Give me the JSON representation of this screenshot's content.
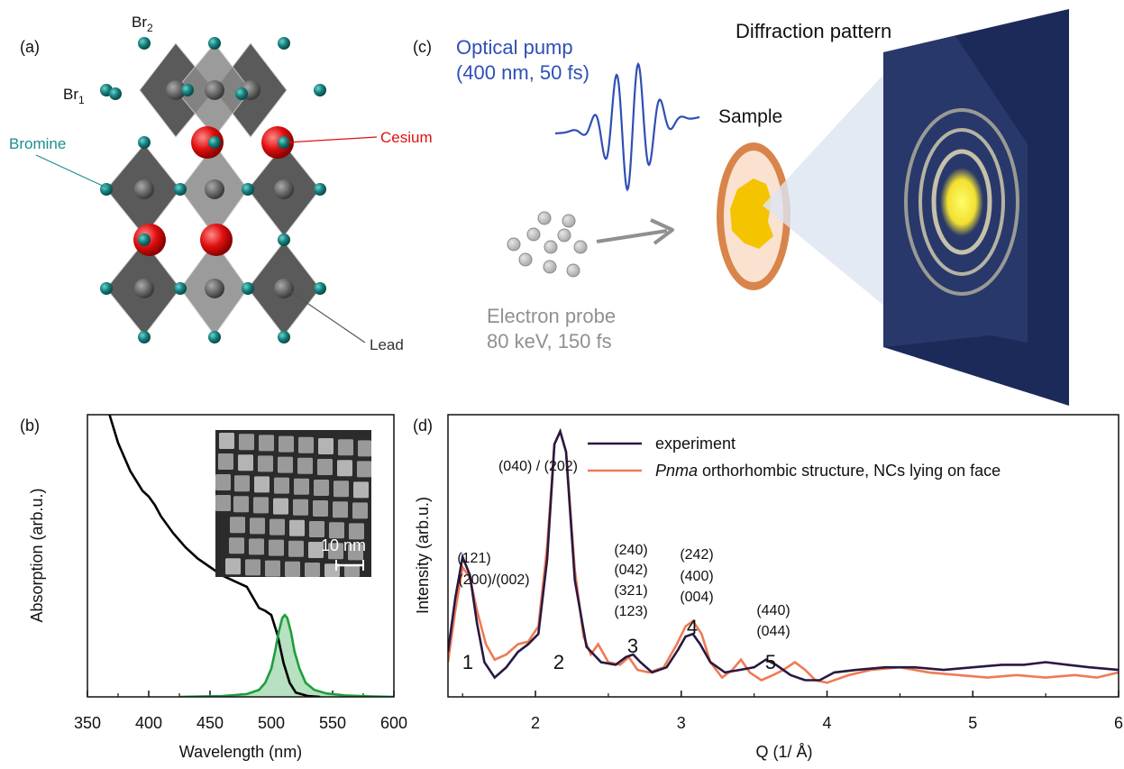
{
  "panels": {
    "a": {
      "label": "(a)",
      "br2": "Br",
      "br2_sub": "2",
      "br1": "Br",
      "br1_sub": "1",
      "bromine": "Bromine",
      "cesium": "Cesium",
      "lead": "Lead"
    },
    "b": {
      "label": "(b)",
      "scale_bar": "10 nm",
      "colors": {
        "absorption": "#000000",
        "pl": "#1e9e3e",
        "pl_fill": "#b7e1c1"
      }
    },
    "c": {
      "label": "(c)",
      "pump_line1": "Optical pump",
      "pump_line2": "(400 nm, 50 fs)",
      "sample": "Sample",
      "probe_line1": "Electron probe",
      "probe_line2": "80 keV, 150 fs",
      "diffraction_title": "Diffraction pattern",
      "colors": {
        "pump": "#2f4fb5",
        "probe": "#909090",
        "screen": "#1c2a5a",
        "sample_ring": "#d9844a",
        "spot": "#f2e030"
      }
    },
    "d": {
      "label": "(d)",
      "legend_experiment": "experiment",
      "legend_sim_italic": "Pnma",
      "legend_sim_rest": " orthorhombic structure, NCs lying on face",
      "peaks": [
        {
          "number": "1",
          "lines": [
            "(121)",
            "(200)/(002)"
          ]
        },
        {
          "number": "2",
          "lines": [
            "(040) / (202)"
          ]
        },
        {
          "number": "3",
          "lines": [
            "(240)",
            "(042)",
            "(321)",
            "(123)"
          ]
        },
        {
          "number": "4",
          "lines": [
            "(242)",
            "(400)",
            "(004)"
          ]
        },
        {
          "number": "5",
          "lines": [
            "(440)",
            "(044)"
          ]
        }
      ],
      "colors": {
        "experiment": "#2a1840",
        "simulation": "#ef7a55"
      }
    }
  },
  "chart_data": [
    {
      "type": "line",
      "panel": "b",
      "xlabel": "Wavelength (nm)",
      "ylabel": "Absorption (arb.u.)",
      "xlim": [
        350,
        600
      ],
      "ylim": [
        0,
        1
      ],
      "xticks": [
        "350",
        "400",
        "450",
        "500",
        "550",
        "600"
      ],
      "series": [
        {
          "x": [
            368,
            375,
            385,
            395,
            400,
            405,
            410,
            420,
            430,
            440,
            450,
            460,
            470,
            480,
            490,
            495,
            500,
            505,
            510,
            515,
            520,
            530,
            540
          ],
          "y": [
            1.0,
            0.9,
            0.8,
            0.73,
            0.71,
            0.68,
            0.64,
            0.58,
            0.53,
            0.49,
            0.46,
            0.43,
            0.41,
            0.39,
            0.315,
            0.305,
            0.29,
            0.22,
            0.12,
            0.05,
            0.015,
            0.003,
            0.0
          ]
        },
        {
          "x": [
            425,
            460,
            480,
            490,
            495,
            500,
            503,
            506,
            509,
            511,
            513,
            516,
            519,
            523,
            528,
            535,
            545,
            560,
            580,
            600
          ],
          "y": [
            0.0,
            0.003,
            0.01,
            0.025,
            0.05,
            0.1,
            0.16,
            0.23,
            0.28,
            0.29,
            0.28,
            0.23,
            0.16,
            0.1,
            0.05,
            0.025,
            0.012,
            0.005,
            0.002,
            0.0
          ]
        }
      ]
    },
    {
      "type": "line",
      "panel": "d",
      "xlabel": "Q (1/ Å)",
      "ylabel": "Intensity (arb.u.)",
      "xlim": [
        1.4,
        6
      ],
      "ylim": [
        0,
        1.1
      ],
      "xticks": [
        "2",
        "3",
        "4",
        "5",
        "6"
      ],
      "series": [
        {
          "name": "experiment",
          "x": [
            1.4,
            1.45,
            1.5,
            1.55,
            1.6,
            1.65,
            1.72,
            1.8,
            1.88,
            1.95,
            2.02,
            2.08,
            2.13,
            2.17,
            2.21,
            2.27,
            2.35,
            2.45,
            2.55,
            2.62,
            2.67,
            2.72,
            2.8,
            2.9,
            2.98,
            3.03,
            3.08,
            3.13,
            3.2,
            3.3,
            3.4,
            3.5,
            3.58,
            3.65,
            3.75,
            3.85,
            3.95,
            4.05,
            4.2,
            4.4,
            4.6,
            4.8,
            5.0,
            5.2,
            5.35,
            5.5,
            5.65,
            5.8,
            6.0
          ],
          "y": [
            0.14,
            0.35,
            0.51,
            0.44,
            0.25,
            0.1,
            0.04,
            0.08,
            0.14,
            0.17,
            0.21,
            0.5,
            0.95,
            1.0,
            0.92,
            0.42,
            0.16,
            0.1,
            0.09,
            0.12,
            0.13,
            0.1,
            0.06,
            0.08,
            0.15,
            0.2,
            0.21,
            0.17,
            0.1,
            0.06,
            0.07,
            0.08,
            0.11,
            0.09,
            0.05,
            0.03,
            0.03,
            0.06,
            0.07,
            0.08,
            0.08,
            0.07,
            0.08,
            0.09,
            0.09,
            0.1,
            0.09,
            0.08,
            0.07
          ]
        },
        {
          "name": "Pnma orthorhombic structure, NCs lying on face",
          "x": [
            1.4,
            1.45,
            1.5,
            1.55,
            1.6,
            1.66,
            1.72,
            1.8,
            1.88,
            1.95,
            2.02,
            2.08,
            2.13,
            2.17,
            2.21,
            2.27,
            2.33,
            2.38,
            2.43,
            2.5,
            2.58,
            2.64,
            2.7,
            2.78,
            2.88,
            2.97,
            3.03,
            3.08,
            3.14,
            3.2,
            3.28,
            3.35,
            3.41,
            3.47,
            3.55,
            3.63,
            3.7,
            3.78,
            3.85,
            3.92,
            4.0,
            4.15,
            4.3,
            4.5,
            4.7,
            4.9,
            5.1,
            5.3,
            5.5,
            5.7,
            5.85,
            6.0
          ],
          "y": [
            0.1,
            0.3,
            0.47,
            0.43,
            0.3,
            0.17,
            0.11,
            0.13,
            0.17,
            0.18,
            0.24,
            0.55,
            0.95,
            1.0,
            0.92,
            0.46,
            0.2,
            0.13,
            0.17,
            0.1,
            0.09,
            0.12,
            0.07,
            0.06,
            0.08,
            0.17,
            0.24,
            0.26,
            0.21,
            0.1,
            0.04,
            0.07,
            0.11,
            0.06,
            0.03,
            0.05,
            0.07,
            0.1,
            0.07,
            0.03,
            0.02,
            0.05,
            0.07,
            0.08,
            0.06,
            0.05,
            0.04,
            0.05,
            0.04,
            0.05,
            0.04,
            0.06
          ]
        }
      ]
    }
  ]
}
